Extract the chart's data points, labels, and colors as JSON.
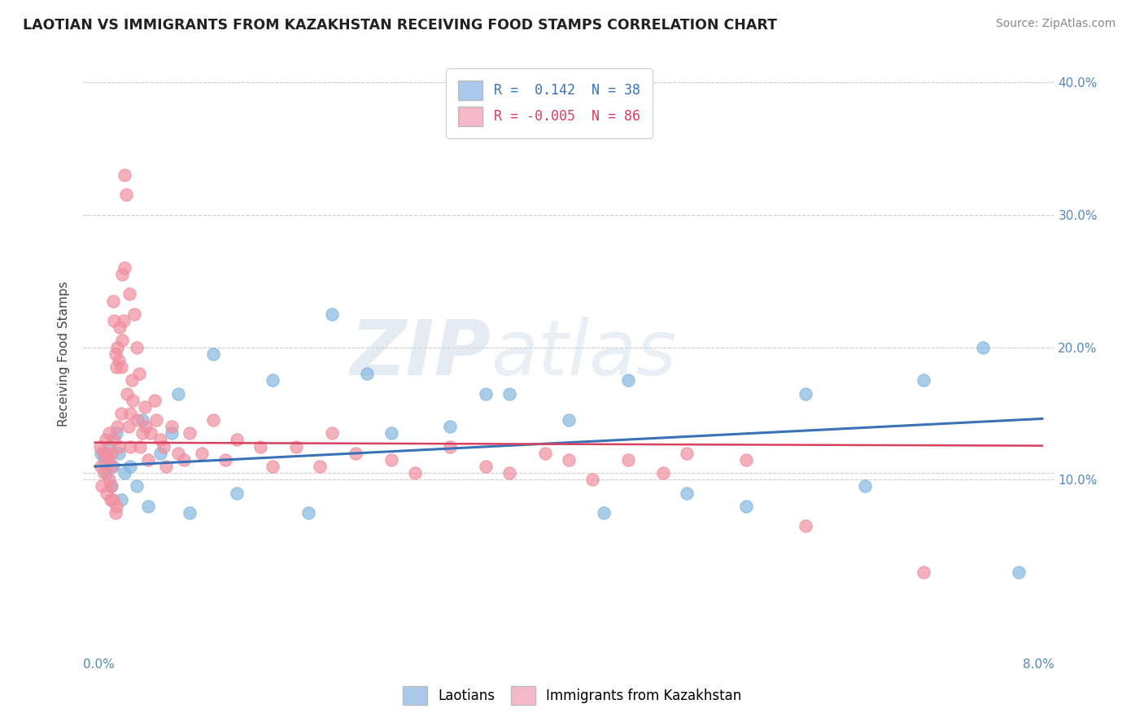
{
  "title": "LAOTIAN VS IMMIGRANTS FROM KAZAKHSTAN RECEIVING FOOD STAMPS CORRELATION CHART",
  "source": "Source: ZipAtlas.com",
  "ylabel": "Receiving Food Stamps",
  "xlim": [
    0.0,
    8.0
  ],
  "ylim": [
    -3.0,
    42.0
  ],
  "ytick_vals": [
    0,
    10,
    20,
    30,
    40
  ],
  "ytick_labels": [
    "",
    "10.0%",
    "20.0%",
    "30.0%",
    "40.0%"
  ],
  "background_color": "#ffffff",
  "legend_blue_label": "R =  0.142  N = 38",
  "legend_pink_label": "R = -0.005  N = 86",
  "legend_blue_color": "#aac8ea",
  "legend_pink_color": "#f4b8c8",
  "series1_color": "#85b8e0",
  "series2_color": "#f090a0",
  "trendline1_color": "#3a72b8",
  "trendline2_color": "#d84060",
  "series1_x": [
    0.05,
    0.08,
    0.1,
    0.12,
    0.14,
    0.15,
    0.18,
    0.2,
    0.22,
    0.25,
    0.3,
    0.35,
    0.4,
    0.45,
    0.55,
    0.65,
    0.7,
    0.8,
    1.0,
    1.2,
    1.5,
    1.8,
    2.0,
    2.3,
    2.5,
    3.0,
    3.3,
    3.5,
    4.0,
    4.3,
    4.5,
    5.0,
    5.5,
    6.0,
    6.5,
    7.0,
    7.5,
    7.8
  ],
  "series1_y": [
    12.0,
    11.5,
    10.5,
    12.5,
    9.5,
    11.0,
    13.5,
    12.0,
    8.5,
    10.5,
    11.0,
    9.5,
    14.5,
    8.0,
    12.0,
    13.5,
    16.5,
    7.5,
    19.5,
    9.0,
    17.5,
    7.5,
    22.5,
    18.0,
    13.5,
    14.0,
    16.5,
    16.5,
    14.5,
    7.5,
    17.5,
    9.0,
    8.0,
    16.5,
    9.5,
    17.5,
    20.0,
    3.0
  ],
  "series2_x": [
    0.04,
    0.05,
    0.06,
    0.07,
    0.08,
    0.09,
    0.1,
    0.1,
    0.11,
    0.12,
    0.12,
    0.13,
    0.13,
    0.14,
    0.14,
    0.15,
    0.15,
    0.16,
    0.16,
    0.17,
    0.17,
    0.18,
    0.18,
    0.19,
    0.19,
    0.2,
    0.2,
    0.21,
    0.22,
    0.22,
    0.23,
    0.23,
    0.24,
    0.25,
    0.25,
    0.26,
    0.27,
    0.28,
    0.29,
    0.3,
    0.3,
    0.31,
    0.32,
    0.33,
    0.35,
    0.36,
    0.37,
    0.38,
    0.4,
    0.42,
    0.43,
    0.45,
    0.47,
    0.5,
    0.52,
    0.55,
    0.58,
    0.6,
    0.65,
    0.7,
    0.75,
    0.8,
    0.9,
    1.0,
    1.1,
    1.2,
    1.4,
    1.5,
    1.7,
    1.9,
    2.0,
    2.2,
    2.5,
    2.7,
    3.0,
    3.3,
    3.5,
    3.8,
    4.0,
    4.2,
    4.5,
    4.8,
    5.0,
    5.5,
    6.0,
    7.0
  ],
  "series2_y": [
    12.5,
    11.0,
    9.5,
    12.0,
    10.5,
    13.0,
    12.0,
    9.0,
    11.5,
    10.0,
    13.5,
    9.5,
    8.5,
    12.0,
    11.0,
    23.5,
    8.5,
    22.0,
    13.0,
    7.5,
    19.5,
    8.0,
    18.5,
    14.0,
    20.0,
    12.5,
    19.0,
    21.5,
    15.0,
    18.5,
    20.5,
    25.5,
    22.0,
    26.0,
    33.0,
    31.5,
    16.5,
    14.0,
    24.0,
    15.0,
    12.5,
    17.5,
    16.0,
    22.5,
    20.0,
    14.5,
    18.0,
    12.5,
    13.5,
    15.5,
    14.0,
    11.5,
    13.5,
    16.0,
    14.5,
    13.0,
    12.5,
    11.0,
    14.0,
    12.0,
    11.5,
    13.5,
    12.0,
    14.5,
    11.5,
    13.0,
    12.5,
    11.0,
    12.5,
    11.0,
    13.5,
    12.0,
    11.5,
    10.5,
    12.5,
    11.0,
    10.5,
    12.0,
    11.5,
    10.0,
    11.5,
    10.5,
    12.0,
    11.5,
    6.5,
    3.0
  ]
}
